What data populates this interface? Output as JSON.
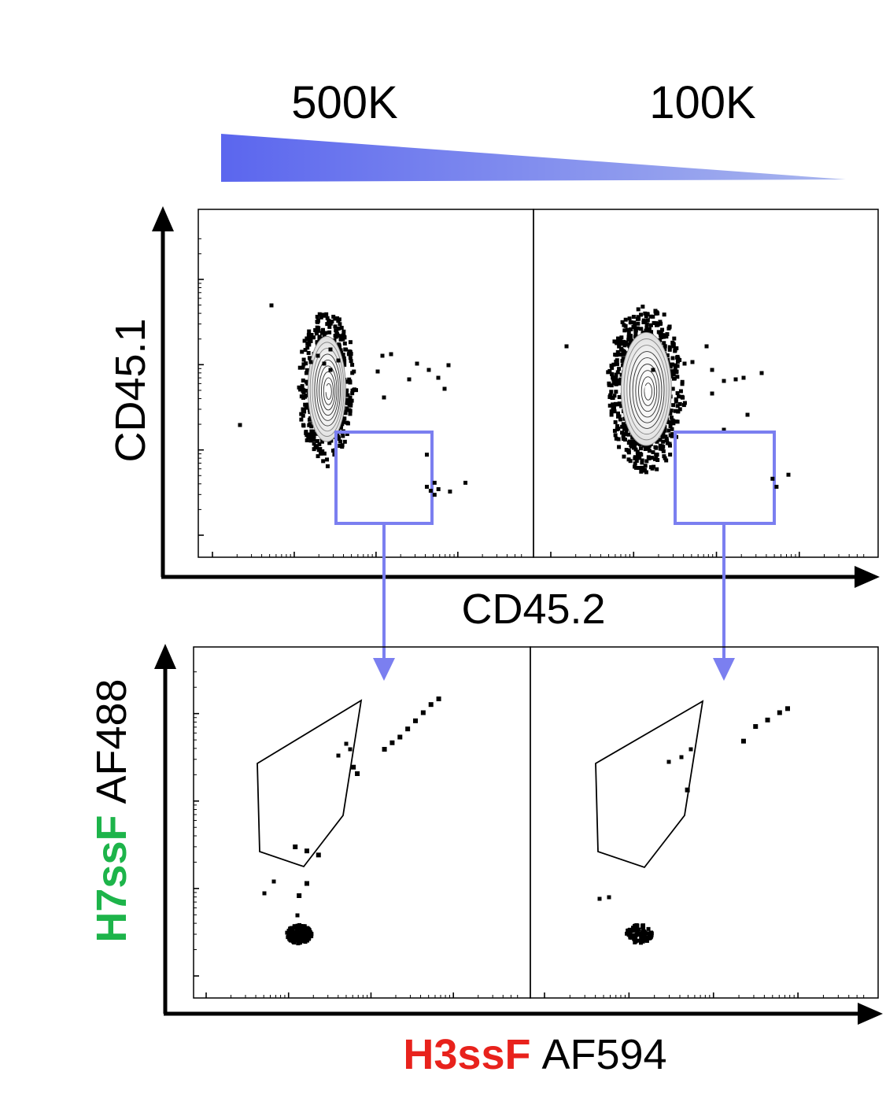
{
  "header": {
    "dose_high": "500K",
    "dose_low": "100K",
    "gradient_color": "#6677ee"
  },
  "colors": {
    "gate_box": "#7b7ff0",
    "arrow": "#7b7ff0",
    "h7_label": "#1db44a",
    "h3_label": "#e8221c",
    "points": "#000000"
  },
  "chart_data": [
    {
      "type": "scatter",
      "subtype": "flow-cytometry-contour-dot",
      "title": "",
      "xlabel": "CD45.2",
      "ylabel": "CD45.1",
      "xscale": "log",
      "yscale": "log",
      "panels": [
        {
          "condition": "500K",
          "main_population": {
            "x": 1.4,
            "y": 3.0
          },
          "gate": {
            "x": [
              2.6,
              3.5
            ],
            "y": [
              0.5,
              1.5
            ]
          },
          "gated_events": [
            {
              "x": 2.9,
              "y": 1.2
            },
            {
              "x": 2.9,
              "y": 0.8
            },
            {
              "x": 2.95,
              "y": 0.75
            },
            {
              "x": 3.0,
              "y": 0.7
            },
            {
              "x": 3.05,
              "y": 0.77
            },
            {
              "x": 3.2,
              "y": 0.74
            },
            {
              "x": 3.4,
              "y": 0.85
            },
            {
              "x": 3.0,
              "y": 0.85
            }
          ]
        },
        {
          "condition": "100K",
          "main_population": {
            "x": 1.4,
            "y": 3.0
          },
          "gate": {
            "x": [
              2.6,
              3.5
            ],
            "y": [
              0.5,
              1.5
            ]
          },
          "gated_events": [
            {
              "x": 2.95,
              "y": 0.9
            },
            {
              "x": 3.0,
              "y": 0.8
            },
            {
              "x": 3.15,
              "y": 0.95
            }
          ]
        }
      ]
    },
    {
      "type": "scatter",
      "subtype": "flow-cytometry-dot",
      "title": "",
      "xlabel": {
        "colored": "H3ssF",
        "plain": "AF594"
      },
      "ylabel": {
        "colored": "H7ssF",
        "plain": "AF488"
      },
      "xscale": "log",
      "yscale": "log",
      "panels": [
        {
          "condition": "500K",
          "double_negative": {
            "x": 1.3,
            "y": 0.7
          },
          "gated_events": [
            {
              "x": 2.4,
              "y": 3.0
            },
            {
              "x": 2.5,
              "y": 3.08
            },
            {
              "x": 2.6,
              "y": 3.15
            },
            {
              "x": 2.7,
              "y": 3.25
            },
            {
              "x": 2.8,
              "y": 3.35
            },
            {
              "x": 2.9,
              "y": 3.45
            },
            {
              "x": 3.0,
              "y": 3.55
            },
            {
              "x": 3.1,
              "y": 3.62
            },
            {
              "x": 2.0,
              "y": 2.78
            },
            {
              "x": 2.05,
              "y": 2.7
            },
            {
              "x": 1.25,
              "y": 1.8
            },
            {
              "x": 1.4,
              "y": 1.75
            },
            {
              "x": 1.55,
              "y": 1.7
            },
            {
              "x": 1.3,
              "y": 1.2
            },
            {
              "x": 1.4,
              "y": 1.35
            }
          ]
        },
        {
          "condition": "100K",
          "double_negative": {
            "x": 1.3,
            "y": 0.7
          },
          "gated_events": [
            {
              "x": 2.6,
              "y": 3.1
            },
            {
              "x": 2.75,
              "y": 3.28
            },
            {
              "x": 2.9,
              "y": 3.36
            },
            {
              "x": 3.05,
              "y": 3.45
            },
            {
              "x": 3.15,
              "y": 3.5
            },
            {
              "x": 1.9,
              "y": 2.5
            }
          ]
        }
      ]
    }
  ]
}
